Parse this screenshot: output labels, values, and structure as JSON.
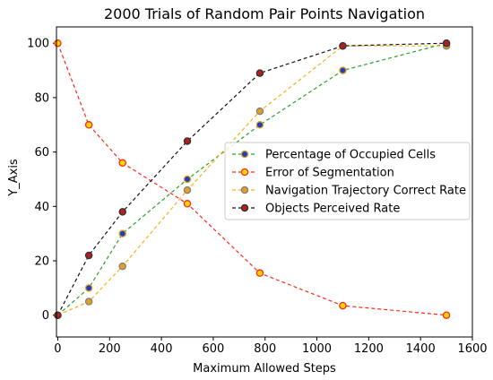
{
  "chart_data": {
    "type": "line",
    "title": "2000 Trials of Random Pair Points Navigation",
    "xlabel": "Maximum Allowed Steps",
    "ylabel": "Y_Axis",
    "xlim": [
      -5,
      1600
    ],
    "ylim": [
      -8,
      106
    ],
    "xticks": [
      0,
      200,
      400,
      600,
      800,
      1000,
      1200,
      1400,
      1600
    ],
    "yticks": [
      0,
      20,
      40,
      60,
      80,
      100
    ],
    "grid": false,
    "legend_position": "center-right",
    "x": [
      0,
      120,
      250,
      500,
      780,
      1100,
      1500
    ],
    "series": [
      {
        "name": "Percentage of Occupied Cells",
        "values": [
          0,
          10,
          30,
          50,
          70,
          90,
          100
        ],
        "line_color": "#2ca02c",
        "marker_fill": "#1f3fbf",
        "marker_edge": "#e0a020"
      },
      {
        "name": "Error of Segmentation",
        "values": [
          100,
          70,
          56,
          41,
          15.5,
          3.5,
          0
        ],
        "line_color": "#ff2a1a",
        "marker_fill": "#ffd400",
        "marker_edge": "#ff2a1a"
      },
      {
        "name": "Navigation Trajectory Correct Rate",
        "values": [
          0,
          5,
          18,
          46,
          75,
          99,
          99
        ],
        "line_color": "#f5b020",
        "marker_fill": "#e0a020",
        "marker_edge": "#808080"
      },
      {
        "name": "Objects Perceived Rate",
        "values": [
          0,
          22,
          38,
          64,
          89,
          99,
          100
        ],
        "line_color": "#111111",
        "marker_fill": "#b02020",
        "marker_edge": "#333333"
      }
    ]
  }
}
